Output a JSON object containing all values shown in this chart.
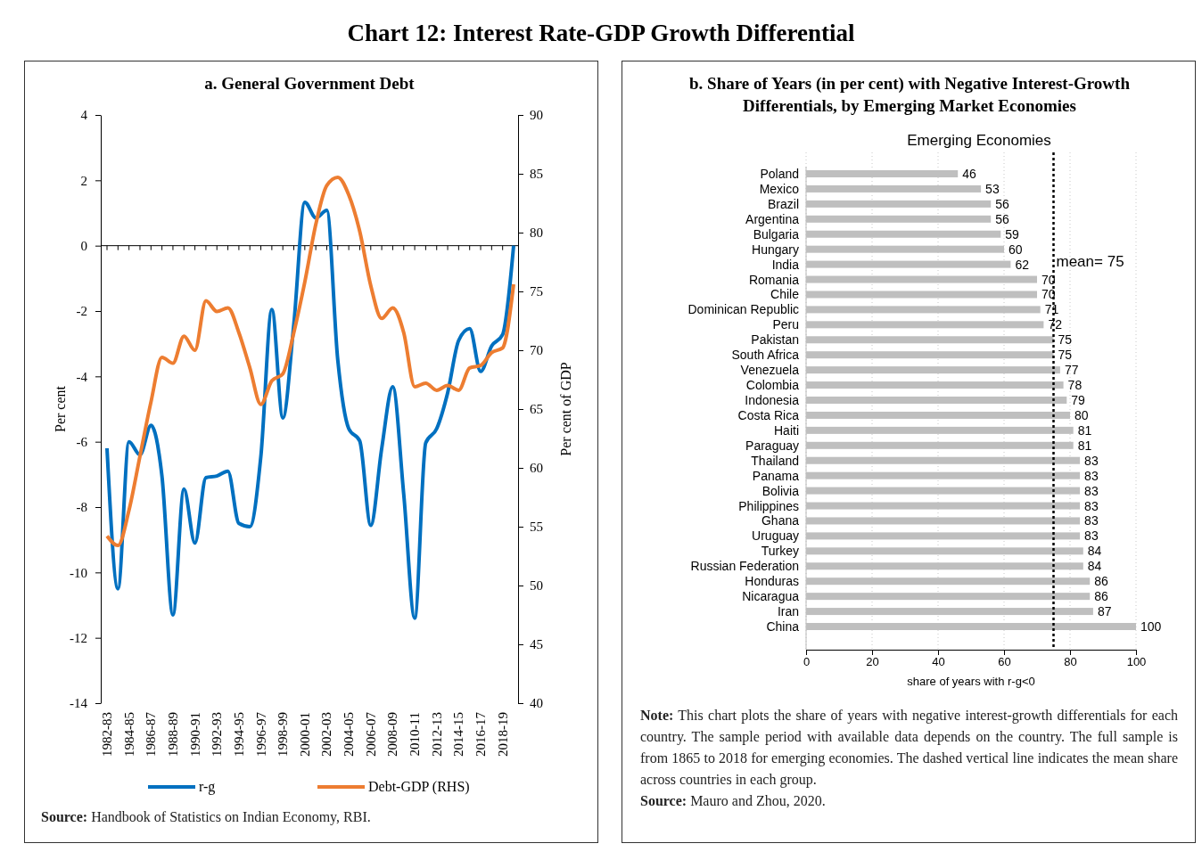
{
  "chart_data": [
    {
      "type": "line",
      "title": "Chart 12: Interest Rate-GDP Growth Differential",
      "subtitle": "a. General Government Debt",
      "ylabel": "Per cent",
      "y2label": "Per cent of GDP",
      "categories": [
        "1982-83",
        null,
        "1984-85",
        null,
        "1986-87",
        null,
        "1988-89",
        null,
        "1990-91",
        null,
        "1992-93",
        null,
        "1994-95",
        null,
        "1996-97",
        null,
        "1998-99",
        null,
        "2000-01",
        null,
        "2002-03",
        null,
        "2004-05",
        null,
        "2006-07",
        null,
        "2008-09",
        null,
        "2010-11",
        null,
        "2012-13",
        null,
        "2014-15",
        null,
        "2016-17",
        null,
        "2018-19",
        null
      ],
      "series": [
        {
          "name": "r-g",
          "color": "#0070c0",
          "values": [
            -6.2,
            -10.5,
            -6.0,
            -6.4,
            -5.5,
            -7.05,
            -11.3,
            -7.45,
            -9.1,
            -7.1,
            -7.05,
            -6.9,
            -8.5,
            -8.6,
            -6.45,
            -1.95,
            -5.27,
            -2.4,
            1.33,
            0.85,
            1.08,
            -3.5,
            -5.6,
            -5.98,
            -8.56,
            -6.2,
            -4.32,
            -7.6,
            -11.4,
            -6.04,
            -5.6,
            -4.5,
            -2.9,
            -2.54,
            -3.85,
            -3.07,
            -2.72,
            0.0
          ]
        },
        {
          "name": "Debt-GDP (RHS)",
          "color": "#ed7d31",
          "axis": "y2",
          "values": [
            54.2,
            53.4,
            56.4,
            61.0,
            65.6,
            69.4,
            68.9,
            71.2,
            70.0,
            74.2,
            73.3,
            73.6,
            71.5,
            68.5,
            65.4,
            67.4,
            68.0,
            71.5,
            75.8,
            80.7,
            84.0,
            84.7,
            83.2,
            80.1,
            75.5,
            72.7,
            73.6,
            71.5,
            66.9,
            67.2,
            66.6,
            67.0,
            66.6,
            68.5,
            68.7,
            69.8,
            70.2,
            75.6
          ]
        }
      ],
      "ylim": [
        -14,
        4
      ],
      "yticks": [
        -14,
        -12,
        -10,
        -8,
        -6,
        -4,
        -2,
        0,
        2,
        4
      ],
      "y2lim": [
        40,
        90
      ],
      "y2ticks": [
        40,
        45,
        50,
        55,
        60,
        65,
        70,
        75,
        80,
        85,
        90
      ],
      "legend": "bottom",
      "line_style": "solid",
      "marker": "none",
      "annotations": [
        "Source: Handbook of Statistics on Indian Economy, RBI."
      ]
    },
    {
      "type": "bar",
      "orientation": "horizontal",
      "title": "b. Share of Years (in per cent) with Negative Interest-Growth Differentials, by Emerging Market Economies",
      "subtitle": "Emerging Economies",
      "xlabel": "share of years with r-g<0",
      "categories": [
        "Poland",
        "Mexico",
        "Brazil",
        "Argentina",
        "Bulgaria",
        "Hungary",
        "India",
        "Romania",
        "Chile",
        "Dominican Republic",
        "Peru",
        "Pakistan",
        "South Africa",
        "Venezuela",
        "Colombia",
        "Indonesia",
        "Costa Rica",
        "Haiti",
        "Paraguay",
        "Thailand",
        "Panama",
        "Bolivia",
        "Philippines",
        "Ghana",
        "Uruguay",
        "Turkey",
        "Russian Federation",
        "Honduras",
        "Nicaragua",
        "Iran",
        "China"
      ],
      "values": [
        46,
        53,
        56,
        56,
        59,
        60,
        62,
        70,
        70,
        71,
        72,
        75,
        75,
        77,
        78,
        79,
        80,
        81,
        81,
        83,
        83,
        83,
        83,
        83,
        83,
        84,
        84,
        86,
        86,
        87,
        100
      ],
      "color": "#bfbfbf",
      "data_labels": true,
      "xlim": [
        0,
        100
      ],
      "xticks": [
        0,
        20,
        40,
        60,
        80,
        100
      ],
      "grid": "x",
      "ref_lines": [
        {
          "axis": "x",
          "value": 75,
          "label": "mean= 75",
          "color": "#000000",
          "line_style": "dotted"
        }
      ],
      "annotations": [
        "Note: This chart plots the share of years with negative interest-growth differentials for each country. The sample period with available data depends on the country. The full sample is from 1865 to 2018 for emerging economies. The dashed vertical line indicates the mean share across countries in each group.",
        "Source: Mauro and Zhou, 2020."
      ]
    }
  ]
}
